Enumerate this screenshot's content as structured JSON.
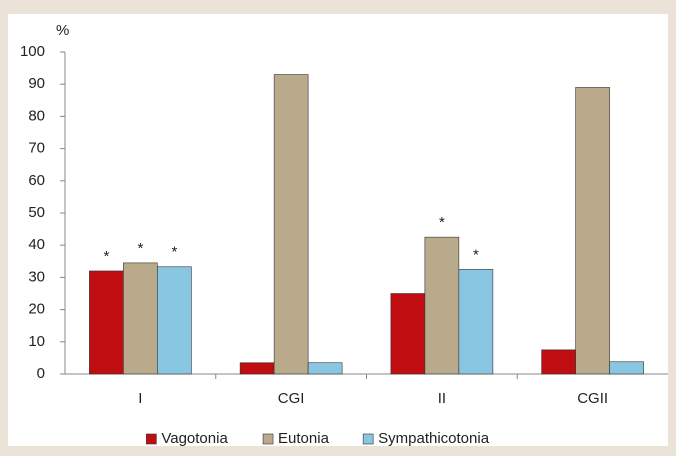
{
  "chart_data": {
    "type": "bar",
    "y_label": "%",
    "categories": [
      "I",
      "CGI",
      "II",
      "CGII"
    ],
    "series": [
      {
        "name": "Vagotonia",
        "color": "#c00d12",
        "values": [
          32,
          3.5,
          25,
          7.5
        ]
      },
      {
        "name": "Eutonia",
        "color": "#b9aa8c",
        "values": [
          34.5,
          93,
          42.5,
          89
        ]
      },
      {
        "name": "Sympathicotonia",
        "color": "#89c6e2",
        "values": [
          33.3,
          3.5,
          32.5,
          3.8
        ]
      }
    ],
    "annotations": [
      {
        "text": "*",
        "category": "I",
        "series": "Vagotonia"
      },
      {
        "text": "*",
        "category": "I",
        "series": "Eutonia"
      },
      {
        "text": "*",
        "category": "I",
        "series": "Sympathicotonia"
      },
      {
        "text": "*",
        "category": "II",
        "series": "Eutonia"
      },
      {
        "text": "*",
        "category": "II",
        "series": "Sympathicotonia"
      }
    ],
    "ylim": [
      0,
      100
    ],
    "yticks": [
      0,
      10,
      20,
      30,
      40,
      50,
      60,
      70,
      80,
      90,
      100
    ],
    "grid": false,
    "legend": "bottom"
  }
}
